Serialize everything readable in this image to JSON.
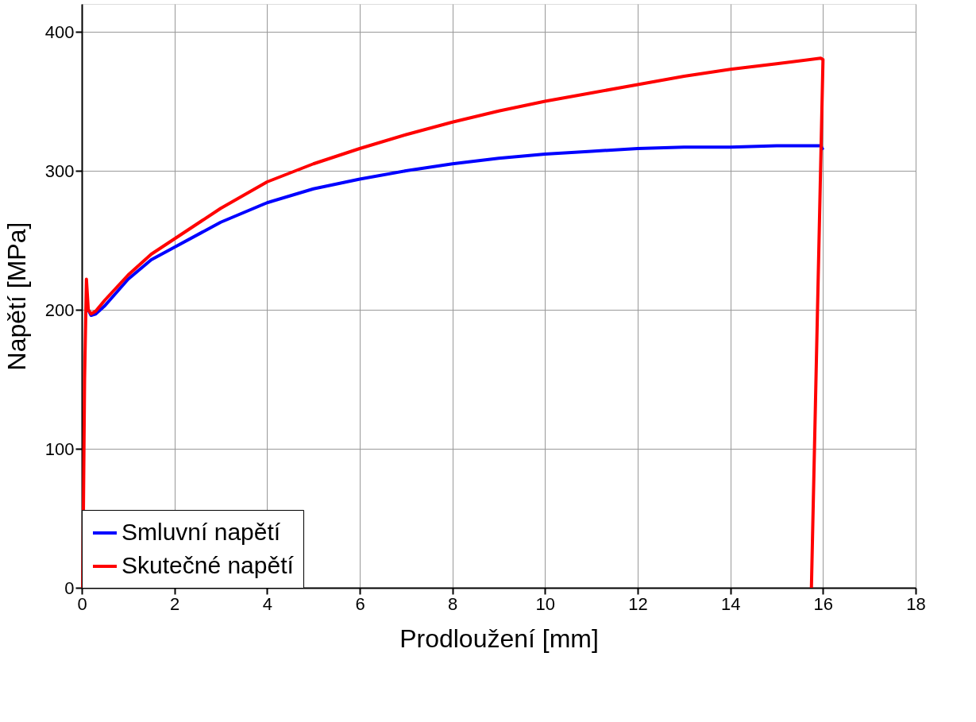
{
  "chart_data": {
    "type": "line",
    "xlabel": "Prodloužení [mm]",
    "ylabel": "Napětí [MPa]",
    "xlim": [
      0,
      18
    ],
    "ylim": [
      0,
      420
    ],
    "xticks": [
      0,
      2,
      4,
      6,
      8,
      10,
      12,
      14,
      16,
      18
    ],
    "yticks": [
      0,
      100,
      200,
      300,
      400
    ],
    "grid": true,
    "legend": "bottom left",
    "line_style": "solid",
    "marker": "none",
    "series": [
      {
        "name": "Smluvní napětí",
        "color": "#0000ff",
        "x": [
          0.14,
          0.2,
          0.3,
          0.5,
          1,
          1.5,
          2,
          3,
          4,
          5,
          6,
          7,
          8,
          9,
          10,
          11,
          12,
          13,
          14,
          15,
          15.95,
          16.0
        ],
        "values": [
          200,
          196,
          197,
          203,
          222,
          236,
          245,
          263,
          277,
          287,
          294,
          300,
          305,
          309,
          312,
          314,
          316,
          317,
          317,
          318,
          318,
          315
        ]
      },
      {
        "name": "Skutečné napětí",
        "color": "#ff0000",
        "x": [
          0.02,
          0.06,
          0.1,
          0.14,
          0.2,
          0.3,
          0.5,
          1,
          1.5,
          2,
          3,
          4,
          5,
          6,
          7,
          8,
          9,
          10,
          11,
          12,
          13,
          14,
          15,
          15.95,
          16.0,
          15.75
        ],
        "values": [
          0,
          150,
          222,
          200,
          197,
          199,
          207,
          225,
          240,
          251,
          273,
          292,
          305,
          316,
          326,
          335,
          343,
          350,
          356,
          362,
          368,
          373,
          377,
          381,
          380,
          0
        ]
      }
    ]
  }
}
